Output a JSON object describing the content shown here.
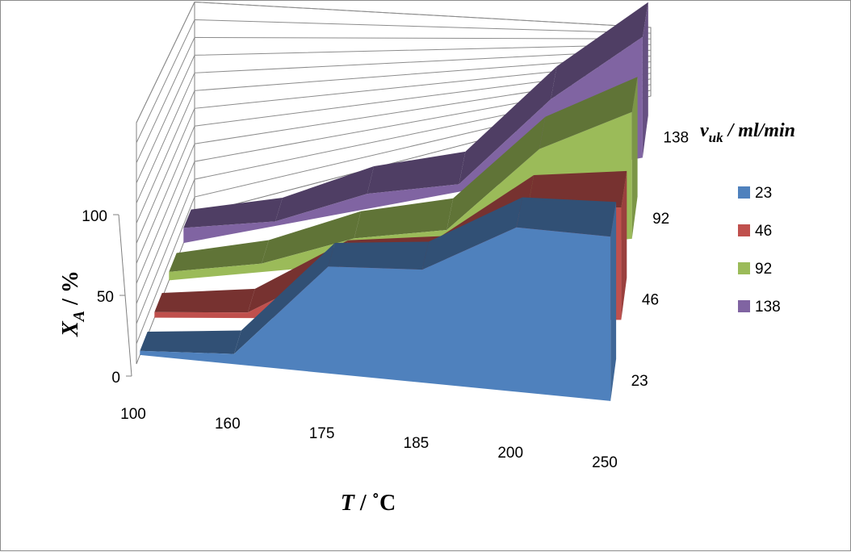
{
  "chart_data": {
    "type": "area",
    "subtype": "3d-area",
    "x_categories": [
      "100",
      "160",
      "175",
      "185",
      "200",
      "250"
    ],
    "z_categories": [
      "23",
      "46",
      "92",
      "138"
    ],
    "series": [
      {
        "name": "23",
        "color": "#4F81BD",
        "values": [
          2,
          5,
          52,
          55,
          80,
          80
        ]
      },
      {
        "name": "46",
        "color": "#C0504D",
        "values": [
          3,
          3,
          28,
          28,
          60,
          60
        ]
      },
      {
        "name": "92",
        "color": "#9BBB59",
        "values": [
          5,
          5,
          15,
          15,
          58,
          75
        ]
      },
      {
        "name": "138",
        "color": "#8064A2",
        "values": [
          10,
          3,
          10,
          5,
          50,
          80
        ]
      }
    ],
    "y_ticks": [
      "0",
      "50",
      "100"
    ],
    "ylim": [
      0,
      100
    ],
    "xlabel": {
      "main": "T",
      "rest": " / ˚C"
    },
    "ylabel": {
      "main": "X",
      "sub": "A",
      "rest": " / %"
    },
    "legend": {
      "title_main": "v",
      "title_sub": "uk",
      "title_rest": " / ml/min",
      "position": "right"
    },
    "gridlines": true
  }
}
